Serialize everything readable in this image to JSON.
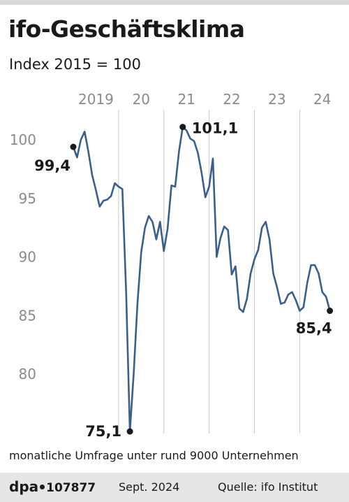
{
  "header": {
    "title": "ifo-Geschäftsklima",
    "subtitle": "Index 2015 = 100"
  },
  "footnote": "monatliche Umfrage unter rund 9000 Unternehmen",
  "footer": {
    "agency": "dpa",
    "graphic_id": "107877",
    "date": "Sept. 2024",
    "source": "Quelle: ifo Institut"
  },
  "colors": {
    "line": "#3a5f8a",
    "grid": "#c8c8c8",
    "tick_text": "#8a8a8a",
    "label_text": "#1a1a1a"
  },
  "chart_data": {
    "type": "line",
    "title": "ifo-Geschäftsklima",
    "subtitle": "Index 2015 = 100",
    "xlabel": "",
    "ylabel": "",
    "ylim": [
      75,
      103
    ],
    "x_range": [
      2019.0,
      2024.75
    ],
    "yticks": [
      100,
      95,
      90,
      85,
      80
    ],
    "ytick_labels": [
      "100",
      "95",
      "90",
      "85",
      "80"
    ],
    "xticks": [
      {
        "label": "2019",
        "year": 2019
      },
      {
        "label": "20",
        "year": 2020
      },
      {
        "label": "21",
        "year": 2021
      },
      {
        "label": "22",
        "year": 2022
      },
      {
        "label": "23",
        "year": 2023
      },
      {
        "label": "24",
        "year": 2024
      }
    ],
    "grid": "vertical",
    "series": [
      {
        "values": [
          99.4,
          98.5,
          100.0,
          100.7,
          99.0,
          97.0,
          95.7,
          94.3,
          94.8,
          94.9,
          95.2,
          96.3,
          96.0,
          95.8,
          87.0,
          75.1,
          80.0,
          86.0,
          90.4,
          92.5,
          93.5,
          93.0,
          91.5,
          93.0,
          90.5,
          92.4,
          96.1,
          96.0,
          99.0,
          101.1,
          100.8,
          100.1,
          99.9,
          98.9,
          97.2,
          95.1,
          96.0,
          98.4,
          90.0,
          91.6,
          92.6,
          92.3,
          88.5,
          89.2,
          85.6,
          85.3,
          86.4,
          88.6,
          89.8,
          90.6,
          92.5,
          93.0,
          91.5,
          88.6,
          87.4,
          86.0,
          86.1,
          86.8,
          87.0,
          86.3,
          85.4,
          85.7,
          87.8,
          89.3,
          89.3,
          88.6,
          87.0,
          86.6,
          85.4
        ]
      }
    ],
    "annotations": [
      {
        "text": "99,4",
        "index": 0,
        "value": 99.4,
        "dot": true,
        "placement": "left-below"
      },
      {
        "text": "101,1",
        "index": 29,
        "value": 101.1,
        "dot": true,
        "placement": "right"
      },
      {
        "text": "75,1",
        "index": 15,
        "value": 75.1,
        "dot": true,
        "placement": "left"
      },
      {
        "text": "85,4",
        "index": 68,
        "value": 85.4,
        "dot": true,
        "placement": "below-left"
      }
    ]
  }
}
